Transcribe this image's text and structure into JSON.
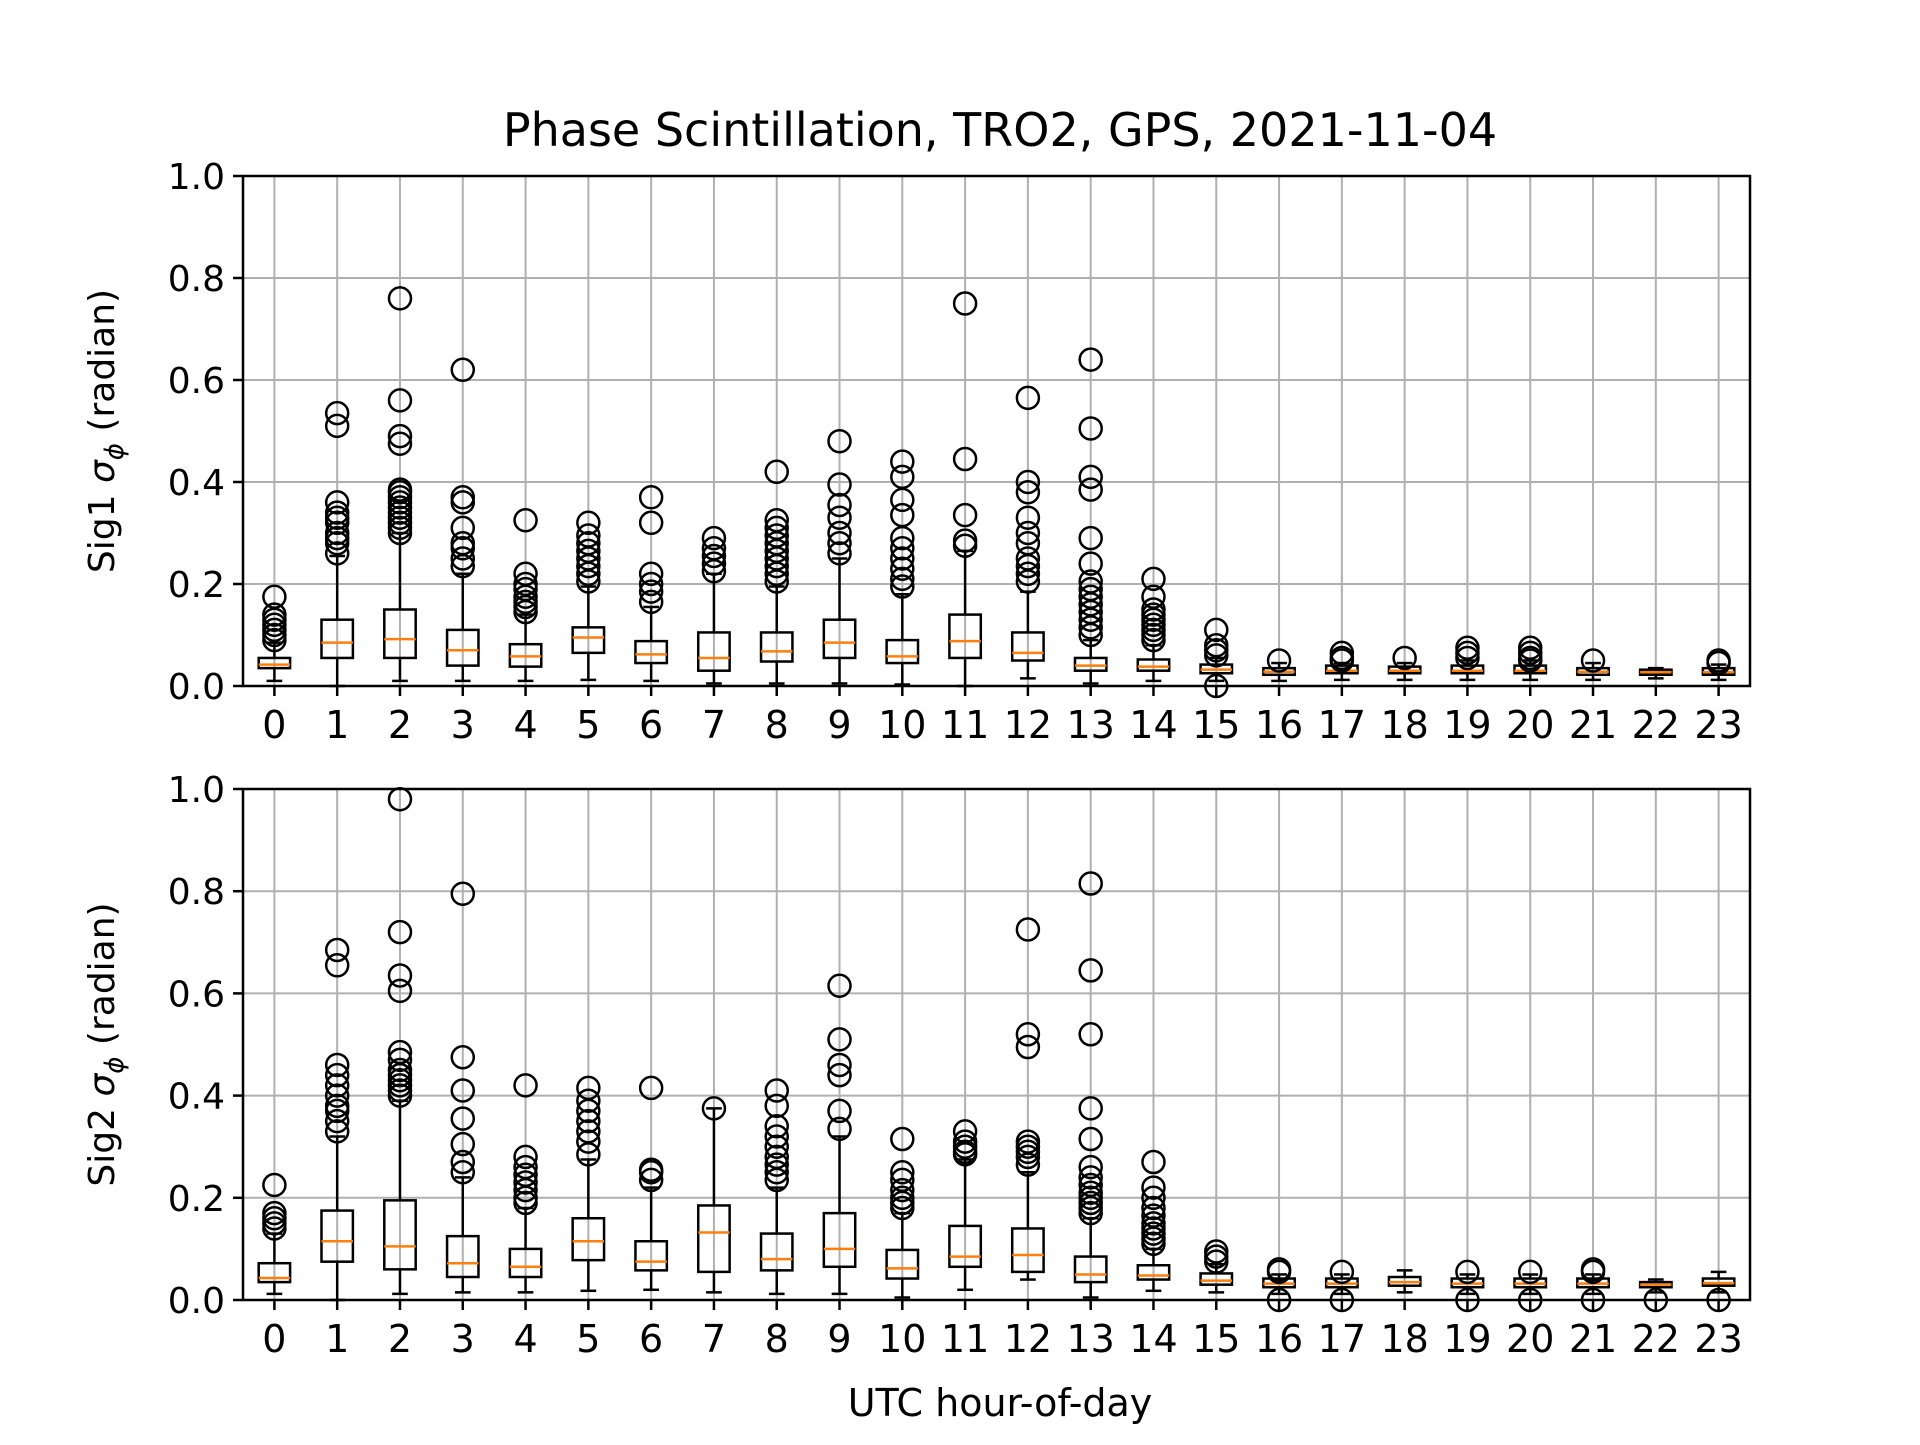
{
  "chart_data": {
    "type": "box",
    "title": "Phase Scintillation, TRO2, GPS, 2021-11-04",
    "xlabel": "UTC hour-of-day",
    "categories": [
      "0",
      "1",
      "2",
      "3",
      "4",
      "5",
      "6",
      "7",
      "8",
      "9",
      "10",
      "11",
      "12",
      "13",
      "14",
      "15",
      "16",
      "17",
      "18",
      "19",
      "20",
      "21",
      "22",
      "23"
    ],
    "grid": true,
    "colors": {
      "box": "#000000",
      "median": "#ff7f0e",
      "grid": "#b0b0b0"
    },
    "panels": [
      {
        "ylabel_prefix": "Sig1 ",
        "ylabel_symbol": "σ",
        "ylabel_subscript": "ϕ",
        "ylabel_suffix": " (radian)",
        "ylim": [
          0.0,
          1.0
        ],
        "yticks": [
          "0.0",
          "0.2",
          "0.4",
          "0.6",
          "0.8",
          "1.0"
        ],
        "boxes": [
          {
            "q1": 0.035,
            "med": 0.042,
            "q3": 0.055,
            "wlo": 0.01,
            "whi": 0.085,
            "fliers": [
              0.09,
              0.1,
              0.11,
              0.12,
              0.13,
              0.14,
              0.175
            ]
          },
          {
            "q1": 0.055,
            "med": 0.085,
            "q3": 0.13,
            "wlo": 0.0,
            "whi": 0.255,
            "fliers": [
              0.26,
              0.28,
              0.29,
              0.3,
              0.32,
              0.33,
              0.34,
              0.36,
              0.51,
              0.535
            ]
          },
          {
            "q1": 0.055,
            "med": 0.092,
            "q3": 0.15,
            "wlo": 0.01,
            "whi": 0.3,
            "fliers": [
              0.3,
              0.31,
              0.32,
              0.33,
              0.34,
              0.35,
              0.36,
              0.37,
              0.38,
              0.385,
              0.475,
              0.49,
              0.56,
              0.76
            ]
          },
          {
            "q1": 0.04,
            "med": 0.07,
            "q3": 0.11,
            "wlo": 0.01,
            "whi": 0.22,
            "fliers": [
              0.235,
              0.25,
              0.27,
              0.28,
              0.31,
              0.36,
              0.37,
              0.62
            ]
          },
          {
            "q1": 0.038,
            "med": 0.058,
            "q3": 0.082,
            "wlo": 0.01,
            "whi": 0.14,
            "fliers": [
              0.145,
              0.155,
              0.165,
              0.175,
              0.19,
              0.2,
              0.22,
              0.325
            ]
          },
          {
            "q1": 0.065,
            "med": 0.095,
            "q3": 0.115,
            "wlo": 0.012,
            "whi": 0.195,
            "fliers": [
              0.205,
              0.22,
              0.235,
              0.25,
              0.265,
              0.28,
              0.295,
              0.32
            ]
          },
          {
            "q1": 0.045,
            "med": 0.062,
            "q3": 0.088,
            "wlo": 0.01,
            "whi": 0.155,
            "fliers": [
              0.165,
              0.185,
              0.2,
              0.22,
              0.32,
              0.37
            ]
          },
          {
            "q1": 0.03,
            "med": 0.055,
            "q3": 0.105,
            "wlo": 0.005,
            "whi": 0.22,
            "fliers": [
              0.225,
              0.24,
              0.255,
              0.27,
              0.29
            ]
          },
          {
            "q1": 0.048,
            "med": 0.068,
            "q3": 0.105,
            "wlo": 0.005,
            "whi": 0.195,
            "fliers": [
              0.205,
              0.22,
              0.235,
              0.25,
              0.265,
              0.28,
              0.295,
              0.31,
              0.325,
              0.42
            ]
          },
          {
            "q1": 0.055,
            "med": 0.085,
            "q3": 0.13,
            "wlo": 0.005,
            "whi": 0.25,
            "fliers": [
              0.26,
              0.28,
              0.3,
              0.33,
              0.355,
              0.395,
              0.48
            ]
          },
          {
            "q1": 0.045,
            "med": 0.058,
            "q3": 0.09,
            "wlo": 0.003,
            "whi": 0.18,
            "fliers": [
              0.195,
              0.21,
              0.23,
              0.25,
              0.27,
              0.29,
              0.335,
              0.365,
              0.41,
              0.44
            ]
          },
          {
            "q1": 0.055,
            "med": 0.088,
            "q3": 0.14,
            "wlo": 0.0,
            "whi": 0.265,
            "fliers": [
              0.275,
              0.285,
              0.335,
              0.445,
              0.75
            ]
          },
          {
            "q1": 0.05,
            "med": 0.065,
            "q3": 0.105,
            "wlo": 0.015,
            "whi": 0.185,
            "fliers": [
              0.205,
              0.22,
              0.235,
              0.25,
              0.28,
              0.3,
              0.33,
              0.38,
              0.4,
              0.565
            ]
          },
          {
            "q1": 0.03,
            "med": 0.04,
            "q3": 0.055,
            "wlo": 0.005,
            "whi": 0.09,
            "fliers": [
              0.1,
              0.115,
              0.13,
              0.145,
              0.16,
              0.175,
              0.19,
              0.205,
              0.24,
              0.29,
              0.385,
              0.41,
              0.505,
              0.64
            ]
          },
          {
            "q1": 0.03,
            "med": 0.038,
            "q3": 0.052,
            "wlo": 0.01,
            "whi": 0.08,
            "fliers": [
              0.09,
              0.1,
              0.11,
              0.12,
              0.13,
              0.14,
              0.15,
              0.175,
              0.21
            ]
          },
          {
            "q1": 0.025,
            "med": 0.032,
            "q3": 0.042,
            "wlo": 0.01,
            "whi": 0.055,
            "fliers": [
              0.06,
              0.07,
              0.08,
              0.11,
              0.0
            ]
          },
          {
            "q1": 0.022,
            "med": 0.028,
            "q3": 0.035,
            "wlo": 0.01,
            "whi": 0.045,
            "fliers": [
              0.05
            ]
          },
          {
            "q1": 0.025,
            "med": 0.03,
            "q3": 0.04,
            "wlo": 0.012,
            "whi": 0.045,
            "fliers": [
              0.05,
              0.055,
              0.065
            ]
          },
          {
            "q1": 0.025,
            "med": 0.03,
            "q3": 0.038,
            "wlo": 0.012,
            "whi": 0.045,
            "fliers": [
              0.055
            ]
          },
          {
            "q1": 0.025,
            "med": 0.03,
            "q3": 0.04,
            "wlo": 0.012,
            "whi": 0.05,
            "fliers": [
              0.055,
              0.065,
              0.075
            ]
          },
          {
            "q1": 0.025,
            "med": 0.03,
            "q3": 0.04,
            "wlo": 0.012,
            "whi": 0.05,
            "fliers": [
              0.055,
              0.065,
              0.075,
              0.05
            ]
          },
          {
            "q1": 0.022,
            "med": 0.028,
            "q3": 0.035,
            "wlo": 0.012,
            "whi": 0.045,
            "fliers": [
              0.05
            ]
          },
          {
            "q1": 0.022,
            "med": 0.027,
            "q3": 0.032,
            "wlo": 0.015,
            "whi": 0.035,
            "fliers": []
          },
          {
            "q1": 0.022,
            "med": 0.027,
            "q3": 0.035,
            "wlo": 0.012,
            "whi": 0.042,
            "fliers": [
              0.045,
              0.05
            ]
          }
        ]
      },
      {
        "ylabel_prefix": "Sig2 ",
        "ylabel_symbol": "σ",
        "ylabel_subscript": "ϕ",
        "ylabel_suffix": " (radian)",
        "ylim": [
          0.0,
          1.0
        ],
        "yticks": [
          "0.0",
          "0.2",
          "0.4",
          "0.6",
          "0.8",
          "1.0"
        ],
        "boxes": [
          {
            "q1": 0.035,
            "med": 0.043,
            "q3": 0.072,
            "wlo": 0.012,
            "whi": 0.13,
            "fliers": [
              0.14,
              0.15,
              0.16,
              0.17,
              0.225
            ]
          },
          {
            "q1": 0.075,
            "med": 0.115,
            "q3": 0.175,
            "wlo": 0.0,
            "whi": 0.32,
            "fliers": [
              0.33,
              0.35,
              0.37,
              0.38,
              0.4,
              0.42,
              0.44,
              0.46,
              0.655,
              0.685
            ]
          },
          {
            "q1": 0.06,
            "med": 0.105,
            "q3": 0.195,
            "wlo": 0.012,
            "whi": 0.39,
            "fliers": [
              0.4,
              0.41,
              0.42,
              0.43,
              0.44,
              0.45,
              0.47,
              0.485,
              0.605,
              0.635,
              0.72,
              0.98
            ]
          },
          {
            "q1": 0.045,
            "med": 0.072,
            "q3": 0.125,
            "wlo": 0.015,
            "whi": 0.24,
            "fliers": [
              0.25,
              0.27,
              0.305,
              0.355,
              0.41,
              0.475,
              0.795
            ]
          },
          {
            "q1": 0.045,
            "med": 0.065,
            "q3": 0.1,
            "wlo": 0.015,
            "whi": 0.18,
            "fliers": [
              0.19,
              0.2,
              0.215,
              0.23,
              0.245,
              0.26,
              0.28,
              0.42
            ]
          },
          {
            "q1": 0.078,
            "med": 0.115,
            "q3": 0.16,
            "wlo": 0.018,
            "whi": 0.275,
            "fliers": [
              0.285,
              0.31,
              0.33,
              0.35,
              0.37,
              0.39,
              0.415
            ]
          },
          {
            "q1": 0.058,
            "med": 0.075,
            "q3": 0.115,
            "wlo": 0.02,
            "whi": 0.22,
            "fliers": [
              0.235,
              0.25,
              0.255,
              0.415
            ]
          },
          {
            "q1": 0.055,
            "med": 0.132,
            "q3": 0.185,
            "wlo": 0.015,
            "whi": 0.375,
            "fliers": [
              0.375
            ]
          },
          {
            "q1": 0.058,
            "med": 0.08,
            "q3": 0.13,
            "wlo": 0.012,
            "whi": 0.22,
            "fliers": [
              0.235,
              0.25,
              0.265,
              0.28,
              0.3,
              0.32,
              0.34,
              0.38,
              0.41
            ]
          },
          {
            "q1": 0.065,
            "med": 0.1,
            "q3": 0.17,
            "wlo": 0.012,
            "whi": 0.32,
            "fliers": [
              0.335,
              0.37,
              0.44,
              0.46,
              0.51,
              0.615
            ]
          },
          {
            "q1": 0.042,
            "med": 0.062,
            "q3": 0.098,
            "wlo": 0.005,
            "whi": 0.17,
            "fliers": [
              0.18,
              0.19,
              0.2,
              0.215,
              0.235,
              0.25,
              0.315
            ]
          },
          {
            "q1": 0.065,
            "med": 0.085,
            "q3": 0.145,
            "wlo": 0.02,
            "whi": 0.275,
            "fliers": [
              0.285,
              0.29,
              0.3,
              0.31,
              0.33
            ]
          },
          {
            "q1": 0.055,
            "med": 0.088,
            "q3": 0.14,
            "wlo": 0.04,
            "whi": 0.25,
            "fliers": [
              0.265,
              0.28,
              0.29,
              0.3,
              0.31,
              0.495,
              0.52,
              0.725
            ]
          },
          {
            "q1": 0.035,
            "med": 0.05,
            "q3": 0.085,
            "wlo": 0.005,
            "whi": 0.16,
            "fliers": [
              0.17,
              0.18,
              0.19,
              0.2,
              0.21,
              0.225,
              0.24,
              0.26,
              0.315,
              0.375,
              0.52,
              0.645,
              0.815
            ]
          },
          {
            "q1": 0.04,
            "med": 0.048,
            "q3": 0.068,
            "wlo": 0.018,
            "whi": 0.1,
            "fliers": [
              0.11,
              0.12,
              0.13,
              0.14,
              0.15,
              0.165,
              0.18,
              0.2,
              0.22,
              0.27
            ]
          },
          {
            "q1": 0.03,
            "med": 0.038,
            "q3": 0.052,
            "wlo": 0.015,
            "whi": 0.07,
            "fliers": [
              0.075,
              0.085,
              0.095
            ]
          },
          {
            "q1": 0.025,
            "med": 0.032,
            "q3": 0.042,
            "wlo": 0.012,
            "whi": 0.05,
            "fliers": [
              0.055,
              0.06,
              0.0
            ]
          },
          {
            "q1": 0.025,
            "med": 0.032,
            "q3": 0.042,
            "wlo": 0.012,
            "whi": 0.05,
            "fliers": [
              0.055,
              0.0
            ]
          },
          {
            "q1": 0.028,
            "med": 0.035,
            "q3": 0.045,
            "wlo": 0.015,
            "whi": 0.058,
            "fliers": []
          },
          {
            "q1": 0.025,
            "med": 0.032,
            "q3": 0.042,
            "wlo": 0.012,
            "whi": 0.05,
            "fliers": [
              0.055,
              0.0
            ]
          },
          {
            "q1": 0.025,
            "med": 0.032,
            "q3": 0.042,
            "wlo": 0.012,
            "whi": 0.05,
            "fliers": [
              0.055,
              0.0
            ]
          },
          {
            "q1": 0.025,
            "med": 0.032,
            "q3": 0.042,
            "wlo": 0.012,
            "whi": 0.05,
            "fliers": [
              0.055,
              0.06,
              0.0
            ]
          },
          {
            "q1": 0.025,
            "med": 0.03,
            "q3": 0.035,
            "wlo": 0.015,
            "whi": 0.04,
            "fliers": [
              0.0
            ]
          },
          {
            "q1": 0.028,
            "med": 0.033,
            "q3": 0.042,
            "wlo": 0.015,
            "whi": 0.055,
            "fliers": [
              0.0
            ]
          }
        ]
      }
    ]
  }
}
